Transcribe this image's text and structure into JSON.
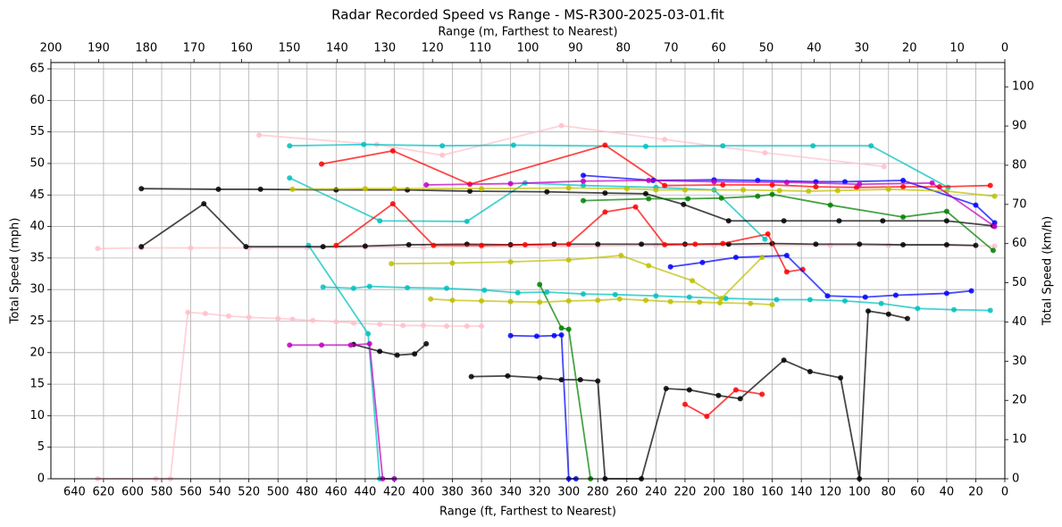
{
  "chart_data": {
    "type": "line",
    "title": "Radar Recorded Speed vs Range - MS-R300-2025-03-01.fit",
    "x_label": "Range (ft, Farthest to Nearest)",
    "x2_label": "Range (m, Farthest to Nearest)",
    "y_label": "Total Speed (mph)",
    "y2_label": "Total Speed (km/h)",
    "xlim": [
      656.2,
      0
    ],
    "xticks": [
      640,
      620,
      600,
      580,
      560,
      540,
      520,
      500,
      480,
      460,
      440,
      420,
      400,
      380,
      360,
      340,
      320,
      300,
      280,
      260,
      240,
      220,
      200,
      180,
      160,
      140,
      120,
      100,
      80,
      60,
      40,
      20,
      0
    ],
    "x2lim": [
      200,
      0
    ],
    "x2ticks": [
      200,
      190,
      180,
      170,
      160,
      150,
      140,
      130,
      120,
      110,
      100,
      90,
      80,
      70,
      60,
      50,
      40,
      30,
      20,
      10,
      0
    ],
    "ylim": [
      0,
      66
    ],
    "yticks": [
      0,
      5,
      10,
      15,
      20,
      25,
      30,
      35,
      40,
      45,
      50,
      55,
      60,
      65
    ],
    "y2lim": [
      0,
      106.2
    ],
    "y2ticks": [
      0,
      10,
      20,
      30,
      40,
      50,
      60,
      70,
      80,
      90,
      100
    ],
    "grid": true,
    "series": [
      {
        "color": "#ffc0cb",
        "x": [
          513,
          432,
          387,
          305,
          234,
          165,
          83
        ],
        "values": [
          54.5,
          53,
          51.3,
          56,
          53.8,
          51.7,
          49.5
        ]
      },
      {
        "color": "#ffc0cb",
        "x": [
          624,
          594,
          560,
          520,
          480,
          440,
          400,
          360,
          320,
          280,
          240,
          200,
          160,
          120,
          80,
          40,
          7
        ],
        "values": [
          36.5,
          36.6,
          36.6,
          36.6,
          36.6,
          36.7,
          36.7,
          36.8,
          36.8,
          36.9,
          37,
          37,
          37,
          37,
          37,
          37,
          36.9
        ]
      },
      {
        "color": "#ffc0cb",
        "x": [
          624,
          584,
          574,
          562,
          550,
          534,
          520,
          500,
          490,
          476,
          460,
          448,
          430,
          414,
          400,
          384,
          370,
          360
        ],
        "values": [
          0,
          0,
          0,
          26.4,
          26.2,
          25.8,
          25.6,
          25.4,
          25.3,
          25.1,
          24.9,
          24.7,
          24.5,
          24.3,
          24.3,
          24.2,
          24.2,
          24.2
        ]
      },
      {
        "color": "#00bfbf",
        "x": [
          492,
          441,
          387,
          338,
          247,
          194,
          132,
          92,
          39
        ],
        "values": [
          52.8,
          53,
          52.8,
          52.9,
          52.7,
          52.8,
          52.8,
          52.8,
          46.2
        ]
      },
      {
        "color": "#00bfbf",
        "x": [
          492,
          430,
          370,
          330,
          290,
          240,
          200,
          165
        ],
        "values": [
          47.7,
          40.9,
          40.8,
          46.9,
          46.5,
          46.2,
          45.8,
          38
        ]
      },
      {
        "color": "#00bfbf",
        "x": [
          479,
          438,
          430,
          420
        ],
        "values": [
          37,
          23,
          0,
          0
        ]
      },
      {
        "color": "#00bfbf",
        "x": [
          469,
          448,
          437,
          411,
          384,
          358,
          335,
          315,
          290,
          268,
          240,
          217,
          192,
          157,
          134,
          110,
          85,
          60,
          35,
          10
        ],
        "values": [
          30.4,
          30.2,
          30.5,
          30.3,
          30.2,
          29.9,
          29.5,
          29.6,
          29.3,
          29.2,
          29,
          28.8,
          28.6,
          28.4,
          28.4,
          28.2,
          27.8,
          27,
          26.8,
          26.7
        ]
      },
      {
        "color": "#000000",
        "x": [
          594,
          541,
          512,
          460,
          411,
          368,
          315,
          275,
          247,
          221,
          190,
          152,
          114,
          84,
          40,
          8
        ],
        "values": [
          46,
          45.9,
          45.9,
          45.8,
          45.8,
          45.6,
          45.5,
          45.3,
          45.2,
          43.5,
          40.9,
          40.9,
          40.9,
          40.9,
          40.9,
          40.1
        ]
      },
      {
        "color": "#000000",
        "x": [
          594,
          551,
          522,
          469,
          440,
          410,
          370,
          340,
          310,
          280,
          250,
          220,
          190,
          160,
          130,
          100,
          70,
          40,
          20
        ],
        "values": [
          36.8,
          43.6,
          36.8,
          36.8,
          36.9,
          37.1,
          37.2,
          37.1,
          37.2,
          37.2,
          37.2,
          37.2,
          37.2,
          37.3,
          37.2,
          37.2,
          37.1,
          37.1,
          37
        ]
      },
      {
        "color": "#000000",
        "x": [
          448,
          430,
          418,
          406,
          398
        ],
        "values": [
          21.3,
          20.2,
          19.6,
          19.8,
          21.4
        ]
      },
      {
        "color": "#000000",
        "x": [
          367,
          342,
          320,
          305,
          292,
          280,
          275,
          250,
          233,
          217,
          197,
          182,
          152,
          134,
          113,
          100,
          94,
          80,
          67
        ],
        "values": [
          16.2,
          16.3,
          16,
          15.7,
          15.7,
          15.5,
          0,
          0,
          14.3,
          14.1,
          13.2,
          12.7,
          18.8,
          17,
          16,
          0,
          26.6,
          26.1,
          25.4
        ]
      },
      {
        "color": "#ff0000",
        "x": [
          470,
          421,
          368,
          275,
          234,
          194,
          160,
          130,
          102,
          70,
          45,
          10
        ],
        "values": [
          49.9,
          52,
          46.7,
          52.9,
          46.5,
          46.6,
          46.6,
          46.3,
          46.2,
          46.3,
          46.3,
          46.5
        ]
      },
      {
        "color": "#ff0000",
        "x": [
          460,
          421,
          393,
          360,
          330,
          300,
          275,
          254,
          234,
          213,
          194,
          163,
          150,
          139
        ],
        "values": [
          37,
          43.6,
          37,
          37,
          37.1,
          37.2,
          42.3,
          43.1,
          37.1,
          37.2,
          37.3,
          38.8,
          32.8,
          33.2
        ]
      },
      {
        "color": "#ff0000",
        "x": [
          220,
          205,
          185,
          167
        ],
        "values": [
          11.8,
          9.9,
          14.1,
          13.4
        ]
      },
      {
        "color": "#0000ff",
        "x": [
          230,
          208,
          185,
          150,
          122,
          96,
          75,
          40,
          23
        ],
        "values": [
          33.6,
          34.3,
          35.1,
          35.4,
          29,
          28.8,
          29.1,
          29.4,
          29.8
        ]
      },
      {
        "color": "#0000ff",
        "x": [
          290,
          242,
          200,
          170,
          130,
          110,
          70,
          20,
          7
        ],
        "values": [
          48.1,
          47.3,
          47.4,
          47.3,
          47.1,
          47.1,
          47.3,
          43.4,
          40.6
        ]
      },
      {
        "color": "#0000ff",
        "x": [
          340,
          322,
          310,
          305,
          300,
          295
        ],
        "values": [
          22.7,
          22.6,
          22.7,
          22.8,
          0,
          0
        ]
      },
      {
        "color": "#008000",
        "x": [
          290,
          245,
          218,
          195,
          170,
          160,
          120,
          70,
          40,
          8
        ],
        "values": [
          44.1,
          44.4,
          44.4,
          44.5,
          44.8,
          45.1,
          43.4,
          41.5,
          42.4,
          36.2
        ]
      },
      {
        "color": "#008000",
        "x": [
          320,
          305,
          300,
          285
        ],
        "values": [
          30.8,
          23.9,
          23.7,
          0
        ]
      },
      {
        "color": "#bfbf00",
        "x": [
          490,
          440,
          420,
          360,
          300,
          260,
          240,
          220,
          180,
          155,
          135,
          115,
          80,
          40,
          7
        ],
        "values": [
          45.9,
          46,
          46,
          46,
          46.1,
          46,
          45.8,
          45.8,
          45.8,
          45.7,
          45.6,
          45.7,
          45.9,
          45.6,
          44.8
        ]
      },
      {
        "color": "#bfbf00",
        "x": [
          395,
          380,
          360,
          340,
          320,
          300,
          280,
          265,
          247,
          230,
          210,
          196,
          175,
          160
        ],
        "values": [
          28.5,
          28.3,
          28.2,
          28.1,
          28,
          28.2,
          28.3,
          28.5,
          28.3,
          28.1,
          28,
          27.9,
          27.8,
          27.6
        ]
      },
      {
        "color": "#bfbf00",
        "x": [
          422,
          380,
          340,
          300,
          264,
          245,
          215,
          195,
          167
        ],
        "values": [
          34.1,
          34.2,
          34.4,
          34.7,
          35.4,
          33.8,
          31.4,
          28.6,
          35.1
        ]
      },
      {
        "color": "#bf00bf",
        "x": [
          492,
          470,
          450,
          437,
          428,
          420
        ],
        "values": [
          21.2,
          21.2,
          21.2,
          21.4,
          0,
          0
        ]
      },
      {
        "color": "#bf00bf",
        "x": [
          398,
          340,
          290,
          245,
          200,
          150,
          100,
          50,
          7
        ],
        "values": [
          46.6,
          46.8,
          47.2,
          47.3,
          47.1,
          47,
          46.7,
          46.9,
          40
        ]
      }
    ]
  }
}
